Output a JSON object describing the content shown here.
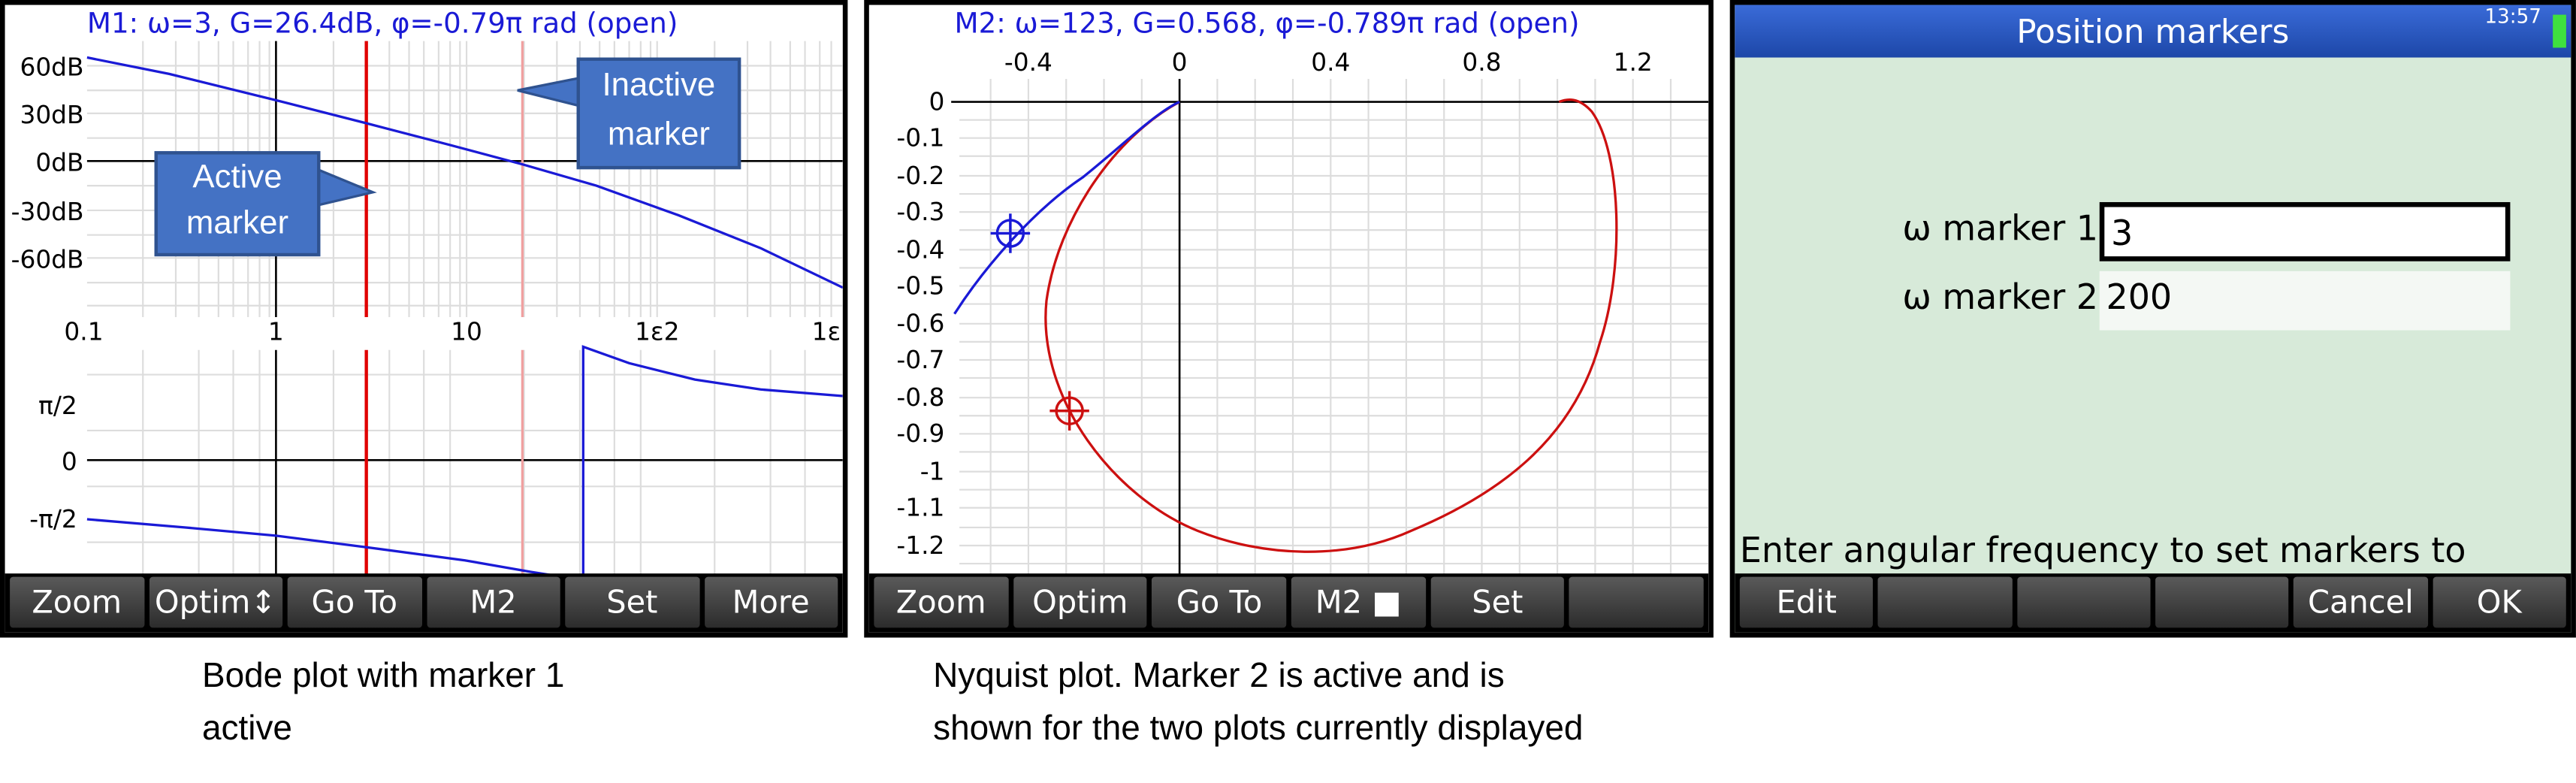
{
  "bode": {
    "status": "M1: ω=3, G=26.4dB, φ=-0.79π rad (open)",
    "gain_ticks": [
      "60dB",
      "30dB",
      "0dB",
      "-30dB",
      "-60dB"
    ],
    "freq_ticks": [
      "0.1",
      "1",
      "10",
      "1ε2",
      "1ε"
    ],
    "phase_ticks": [
      "π/2",
      "0",
      "-π/2"
    ],
    "callout_active": [
      "Active",
      "marker"
    ],
    "callout_inactive": [
      "Inactive",
      "marker"
    ],
    "menu": [
      "Zoom",
      "Optim↕",
      "Go To",
      "M2",
      "Set",
      "More"
    ],
    "caption": [
      "Bode plot with marker 1",
      "active"
    ]
  },
  "nyquist": {
    "status": "M2: ω=123, G=0.568, φ=-0.789π rad (open)",
    "x_ticks": [
      "-0.4",
      "0",
      "0.4",
      "0.8",
      "1.2"
    ],
    "y_ticks": [
      "0",
      "-0.1",
      "-0.2",
      "-0.3",
      "-0.4",
      "-0.5",
      "-0.6",
      "-0.7",
      "-0.8",
      "-0.9",
      "-1",
      "-1.1",
      "-1.2"
    ],
    "menu": [
      "Zoom",
      "Optim",
      "Go To",
      "M2 ■",
      "Set",
      ""
    ],
    "caption": [
      "Nyquist plot. Marker 2 is active and is",
      "shown for the two plots currently displayed"
    ]
  },
  "form": {
    "title": "Position markers",
    "clock": "13:57",
    "marker1_label": "ω marker 1",
    "marker1_value": "3",
    "marker2_label": "ω marker 2",
    "marker2_value": "200",
    "help": "Enter angular frequency to set markers to",
    "menu": [
      "Edit",
      "",
      "",
      "",
      "Cancel",
      "OK"
    ]
  },
  "colors": {
    "curve_blue": "#1a1ad6",
    "curve_red": "#cc1010",
    "callout_fill": "#4472c4",
    "title_bar": "#1d47a8"
  }
}
